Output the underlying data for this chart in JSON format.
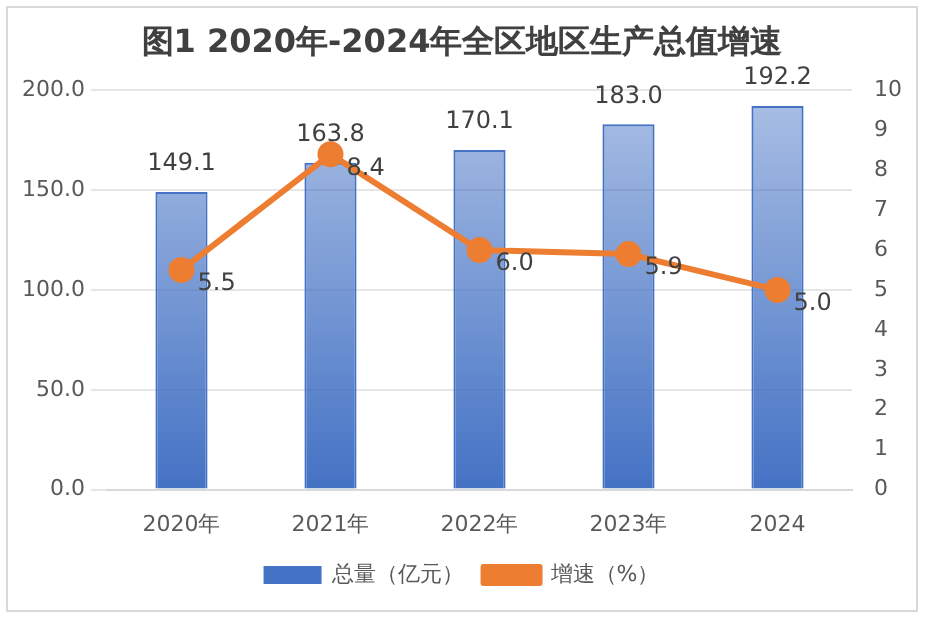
{
  "chart_data": {
    "type": "bar",
    "title": "图1 2020年-2024年全区地区生产总值增速",
    "categories": [
      "2020年",
      "2021年",
      "2022年",
      "2023年",
      "2024"
    ],
    "series": [
      {
        "name": "总量（亿元）",
        "color": "#4472c4",
        "values": [
          149.1,
          163.8,
          170.1,
          183.0,
          192.2
        ],
        "value_labels": [
          "149.1",
          "163.8",
          "170.1",
          "183.0",
          "192.2"
        ]
      },
      {
        "name": "增速（%）",
        "type": "line",
        "axis": "y2",
        "color": "#ed7d31",
        "marker": "circle",
        "values": [
          5.5,
          8.4,
          6.0,
          5.9,
          5.0
        ],
        "value_labels": [
          "5.5",
          "8.4",
          "6.0",
          "5.9",
          "5.0"
        ]
      }
    ],
    "ylim": [
      0,
      200
    ],
    "yticks": [
      {
        "value": 0,
        "label": "0.0"
      },
      {
        "value": 50,
        "label": "50.0"
      },
      {
        "value": 100,
        "label": "100.0"
      },
      {
        "value": 150,
        "label": "150.0"
      },
      {
        "value": 200,
        "label": "200.0"
      }
    ],
    "y2lim": [
      0,
      10
    ],
    "y2ticks": [
      0,
      1,
      2,
      3,
      4,
      5,
      6,
      7,
      8,
      9,
      10
    ],
    "grid": "y",
    "legend": "bottom"
  }
}
